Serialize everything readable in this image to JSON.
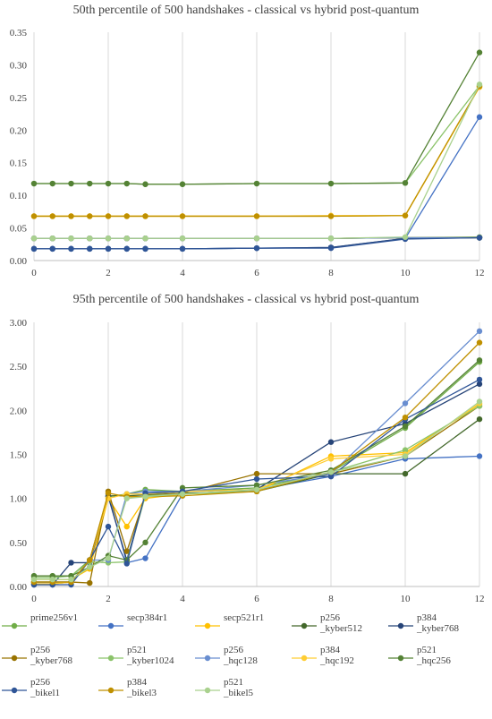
{
  "chart_data": [
    {
      "type": "line",
      "title": "50th percentile of 500 handshakes - classical vs hybrid post-quantum",
      "xlabel": "",
      "ylabel": "",
      "x": [
        0,
        0.5,
        1,
        1.5,
        2,
        2.5,
        3,
        4,
        6,
        8,
        10,
        12
      ],
      "xticks": [
        0,
        2,
        4,
        6,
        8,
        10,
        12
      ],
      "xlim": [
        0,
        12
      ],
      "ylim": [
        0,
        0.35
      ],
      "yticks": [
        "0.00",
        "0.05",
        "0.10",
        "0.15",
        "0.20",
        "0.25",
        "0.30",
        "0.35"
      ],
      "grid": "vertical",
      "series": [
        {
          "name": "prime256v1",
          "color": "#70ad47",
          "values": [
            0.034,
            0.034,
            0.034,
            0.034,
            0.034,
            0.034,
            0.034,
            0.034,
            0.034,
            0.034,
            0.035,
            0.036
          ]
        },
        {
          "name": "secp384r1",
          "color": "#4472c4",
          "values": [
            0.018,
            0.018,
            0.018,
            0.018,
            0.018,
            0.018,
            0.018,
            0.018,
            0.019,
            0.02,
            0.034,
            0.22
          ]
        },
        {
          "name": "secp521r1",
          "color": "#ffc000",
          "values": [
            0.068,
            0.068,
            0.068,
            0.068,
            0.068,
            0.068,
            0.068,
            0.068,
            0.068,
            0.068,
            0.069,
            0.266
          ]
        },
        {
          "name": "p256 _kyber512",
          "color": "#43682b",
          "values": [
            0.034,
            0.034,
            0.034,
            0.034,
            0.034,
            0.034,
            0.034,
            0.034,
            0.034,
            0.034,
            0.035,
            0.035
          ]
        },
        {
          "name": "p384 _kyber768",
          "color": "#264478",
          "values": [
            0.018,
            0.018,
            0.018,
            0.018,
            0.018,
            0.018,
            0.018,
            0.018,
            0.019,
            0.02,
            0.034,
            0.035
          ]
        },
        {
          "name": "p256 _kyber768",
          "color": "#997300",
          "values": [
            0.034,
            0.034,
            0.034,
            0.034,
            0.034,
            0.034,
            0.034,
            0.034,
            0.034,
            0.034,
            0.035,
            0.035
          ]
        },
        {
          "name": "p521 _kyber1024",
          "color": "#8bc36a",
          "values": [
            0.118,
            0.118,
            0.118,
            0.118,
            0.118,
            0.118,
            0.117,
            0.117,
            0.118,
            0.118,
            0.119,
            0.268
          ]
        },
        {
          "name": "p256 _hqc128",
          "color": "#698ed0",
          "values": [
            0.034,
            0.034,
            0.034,
            0.034,
            0.034,
            0.034,
            0.034,
            0.034,
            0.034,
            0.034,
            0.035,
            0.035
          ]
        },
        {
          "name": "p384 _hqc192",
          "color": "#ffcd33",
          "values": [
            0.068,
            0.068,
            0.068,
            0.068,
            0.068,
            0.068,
            0.068,
            0.068,
            0.068,
            0.069,
            0.069,
            0.266
          ]
        },
        {
          "name": "p521 _hqc256",
          "color": "#548235",
          "values": [
            0.118,
            0.118,
            0.118,
            0.118,
            0.118,
            0.118,
            0.117,
            0.117,
            0.118,
            0.118,
            0.119,
            0.319
          ]
        },
        {
          "name": "p256 _bike l1",
          "color": "#2f5597",
          "values": [
            0.018,
            0.018,
            0.018,
            0.018,
            0.018,
            0.018,
            0.018,
            0.018,
            0.019,
            0.019,
            0.033,
            0.035
          ]
        },
        {
          "name": "p384 _bike l3",
          "color": "#bf9000",
          "values": [
            0.068,
            0.068,
            0.068,
            0.068,
            0.068,
            0.068,
            0.068,
            0.068,
            0.068,
            0.068,
            0.069,
            0.267
          ]
        },
        {
          "name": "p521 _bike l5",
          "color": "#a9d18e",
          "values": [
            0.034,
            0.034,
            0.034,
            0.034,
            0.034,
            0.034,
            0.034,
            0.034,
            0.034,
            0.034,
            0.036,
            0.27
          ]
        }
      ]
    },
    {
      "type": "line",
      "title": "95th percentile of 500 handshakes - classical vs hybrid post-quantum",
      "xlabel": "",
      "ylabel": "",
      "x": [
        0,
        0.5,
        1,
        1.5,
        2,
        2.5,
        3,
        4,
        6,
        8,
        10,
        12
      ],
      "xticks": [
        0,
        2,
        4,
        6,
        8,
        10,
        12
      ],
      "xlim": [
        0,
        12
      ],
      "ylim": [
        0,
        3.0
      ],
      "yticks": [
        "0.00",
        "0.50",
        "1.00",
        "1.50",
        "2.00",
        "2.50",
        "3.00"
      ],
      "grid": "vertical",
      "series": [
        {
          "name": "prime256v1",
          "color": "#70ad47",
          "values": [
            0.12,
            0.12,
            0.12,
            0.3,
            1.02,
            1.05,
            1.1,
            1.08,
            1.12,
            1.3,
            1.8,
            2.55
          ]
        },
        {
          "name": "secp384r1",
          "color": "#4472c4",
          "values": [
            0.03,
            0.03,
            0.05,
            0.3,
            1.05,
            0.27,
            0.32,
            1.05,
            1.1,
            1.25,
            1.45,
            1.48
          ]
        },
        {
          "name": "secp521r1",
          "color": "#ffc000",
          "values": [
            0.08,
            0.08,
            0.08,
            0.2,
            1.0,
            0.68,
            1.0,
            1.05,
            1.08,
            1.48,
            1.52,
            2.07
          ]
        },
        {
          "name": "p256 _kyber512",
          "color": "#43682b",
          "values": [
            0.05,
            0.05,
            0.05,
            0.3,
            1.03,
            1.03,
            1.04,
            1.06,
            1.08,
            1.28,
            1.28,
            1.9
          ]
        },
        {
          "name": "p384 _kyber768",
          "color": "#264478",
          "values": [
            0.02,
            0.02,
            0.27,
            0.27,
            1.02,
            0.3,
            1.05,
            1.08,
            1.1,
            1.64,
            1.85,
            2.3
          ]
        },
        {
          "name": "p256 _kyber768",
          "color": "#997300",
          "values": [
            0.05,
            0.05,
            0.05,
            0.04,
            1.08,
            0.4,
            1.03,
            1.06,
            1.28,
            1.28,
            1.48,
            2.05
          ]
        },
        {
          "name": "p521 _kyber1024",
          "color": "#8bc36a",
          "values": [
            0.1,
            0.1,
            0.12,
            0.28,
            0.27,
            0.28,
            1.03,
            1.05,
            1.08,
            1.3,
            1.55,
            2.05
          ]
        },
        {
          "name": "p256 _hqc128",
          "color": "#698ed0",
          "values": [
            0.05,
            0.05,
            0.05,
            0.3,
            0.3,
            1.05,
            1.08,
            1.08,
            1.15,
            1.28,
            2.08,
            2.9
          ]
        },
        {
          "name": "p384 _hqc192",
          "color": "#ffcd33",
          "values": [
            0.03,
            0.03,
            0.05,
            0.3,
            1.0,
            1.05,
            1.05,
            1.08,
            1.1,
            1.45,
            1.5,
            2.08
          ]
        },
        {
          "name": "p521 _hqc256",
          "color": "#548235",
          "values": [
            0.12,
            0.12,
            0.12,
            0.22,
            0.35,
            0.3,
            0.5,
            1.12,
            1.15,
            1.32,
            1.82,
            2.57
          ]
        },
        {
          "name": "p256 _bike l1",
          "color": "#2f5597",
          "values": [
            0.02,
            0.02,
            0.02,
            0.3,
            0.68,
            0.26,
            1.06,
            1.08,
            1.22,
            1.25,
            1.9,
            2.35
          ]
        },
        {
          "name": "p384 _bike l3",
          "color": "#bf9000",
          "values": [
            0.05,
            0.05,
            0.05,
            0.3,
            1.06,
            1.02,
            1.02,
            1.03,
            1.08,
            1.3,
            1.92,
            2.77
          ]
        },
        {
          "name": "p521 _bike l5",
          "color": "#a9d18e",
          "values": [
            0.08,
            0.08,
            0.08,
            0.22,
            0.32,
            1.0,
            1.02,
            1.05,
            1.1,
            1.3,
            1.48,
            2.1
          ]
        }
      ]
    }
  ],
  "legend": [
    {
      "line1": "prime256v1",
      "line2": "",
      "color": "#70ad47"
    },
    {
      "line1": "secp384r1",
      "line2": "",
      "color": "#4472c4"
    },
    {
      "line1": "secp521r1",
      "line2": "",
      "color": "#ffc000"
    },
    {
      "line1": "p256",
      "line2": "_kyber512",
      "color": "#43682b"
    },
    {
      "line1": "p384",
      "line2": "_kyber768",
      "color": "#264478"
    },
    {
      "line1": "p256",
      "line2": "_kyber768",
      "color": "#997300"
    },
    {
      "line1": "p521",
      "line2": "_kyber1024",
      "color": "#8bc36a"
    },
    {
      "line1": "p256",
      "line2": "_hqc128",
      "color": "#698ed0"
    },
    {
      "line1": "p384",
      "line2": "_hqc192",
      "color": "#ffcd33"
    },
    {
      "line1": "p521",
      "line2": "_hqc256",
      "color": "#548235"
    },
    {
      "line1": "p256",
      "line2": "_bikel1",
      "color": "#2f5597"
    },
    {
      "line1": "p384",
      "line2": "_bikel3",
      "color": "#bf9000"
    },
    {
      "line1": "p521",
      "line2": "_bikel5",
      "color": "#a9d18e"
    }
  ]
}
